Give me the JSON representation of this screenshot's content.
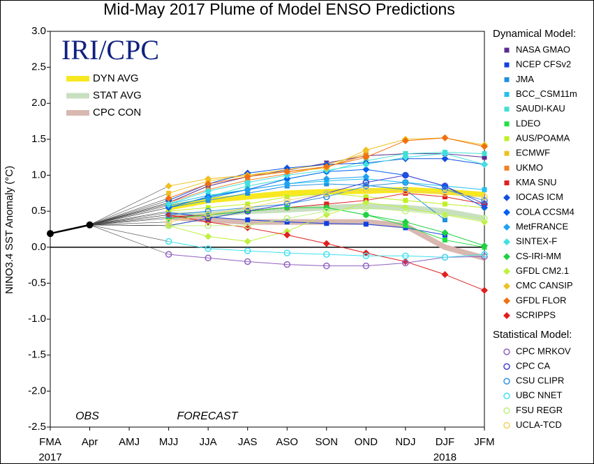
{
  "chart_data": {
    "type": "line",
    "title": "Mid-May 2017 Plume of Model ENSO Predictions",
    "logo": "IRI/CPC",
    "y_label": "NINO3.4 SST Anomaly (°C)",
    "categories": [
      "FMA",
      "Apr",
      "AMJ",
      "MJJ",
      "JJA",
      "JAS",
      "ASO",
      "SON",
      "OND",
      "NDJ",
      "DJF",
      "JFM"
    ],
    "year_labels": [
      "2017",
      "2018"
    ],
    "annotations": [
      "OBS",
      "FORECAST"
    ],
    "legend_groups": [
      "Dynamical Model:",
      "Statistical Model:"
    ],
    "ylim": [
      -2.5,
      3.0
    ],
    "yticks": [
      {
        "value": 3,
        "label": "3.0"
      },
      {
        "value": 2.5,
        "label": "2.5"
      },
      {
        "value": 2,
        "label": "2.0"
      },
      {
        "value": 1.5,
        "label": "1.5"
      },
      {
        "value": 1,
        "label": "1.0"
      },
      {
        "value": 0.5,
        "label": "0.5"
      },
      {
        "value": 0,
        "label": "0.0"
      },
      {
        "value": -0.5,
        "label": "-0.5"
      },
      {
        "value": -1,
        "label": "-1.0"
      },
      {
        "value": -1.5,
        "label": "-1.5"
      },
      {
        "value": -2,
        "label": "-2.0"
      },
      {
        "value": -2.5,
        "label": "-2.5"
      }
    ],
    "observed": {
      "color": "#000000",
      "values": [
        0.19,
        0.31,
        null,
        null,
        null,
        null,
        null,
        null,
        null,
        null,
        null,
        null
      ]
    },
    "averages": [
      {
        "name": "DYN AVG",
        "color": "#f8e820",
        "values": [
          null,
          null,
          null,
          0.55,
          0.65,
          0.7,
          0.75,
          0.77,
          0.78,
          0.8,
          0.77,
          0.73
        ]
      },
      {
        "name": "STAT AVG",
        "color": "#c8e0c0",
        "values": [
          null,
          null,
          null,
          0.45,
          0.45,
          0.5,
          0.52,
          0.55,
          0.57,
          0.55,
          0.5,
          0.4
        ]
      },
      {
        "name": "CPC CON",
        "color": "#d8b8b0",
        "values": [
          null,
          null,
          null,
          0.42,
          0.38,
          0.35,
          0.35,
          0.35,
          0.35,
          0.3,
          0.0,
          -0.15
        ]
      }
    ],
    "series": [
      {
        "name": "NASA GMAO",
        "group": "dynamical",
        "marker": "square",
        "color": "#5a2a90",
        "values": [
          null,
          null,
          null,
          0.62,
          0.85,
          0.98,
          1.07,
          1.17,
          1.27,
          1.3,
          1.3,
          1.25
        ]
      },
      {
        "name": "NCEP CFSv2",
        "group": "dynamical",
        "marker": "square",
        "color": "#1040e0",
        "values": [
          null,
          null,
          null,
          0.48,
          0.42,
          0.38,
          0.35,
          0.33,
          0.32,
          0.27,
          0.17,
          null
        ]
      },
      {
        "name": "JMA",
        "group": "dynamical",
        "marker": "square",
        "color": "#2090e0",
        "values": [
          null,
          null,
          null,
          0.55,
          0.65,
          0.75,
          0.85,
          0.88,
          0.86,
          0.8,
          0.38,
          null
        ]
      },
      {
        "name": "BCC_CSM11m",
        "group": "dynamical",
        "marker": "square",
        "color": "#20c0f0",
        "values": [
          null,
          null,
          null,
          0.6,
          0.72,
          0.8,
          0.88,
          0.92,
          0.95,
          0.9,
          0.85,
          0.8
        ]
      },
      {
        "name": "SAUDI-KAU",
        "group": "dynamical",
        "marker": "square",
        "color": "#40e0d0",
        "values": [
          null,
          null,
          null,
          0.55,
          0.7,
          0.85,
          0.95,
          1.05,
          1.2,
          1.3,
          1.32,
          1.3
        ]
      },
      {
        "name": "LDEO",
        "group": "dynamical",
        "marker": "square",
        "color": "#20e040",
        "values": [
          null,
          null,
          null,
          0.3,
          0.4,
          0.5,
          0.55,
          0.55,
          0.45,
          0.3,
          0.1,
          0.0
        ]
      },
      {
        "name": "AUS/POAMA",
        "group": "dynamical",
        "marker": "square",
        "color": "#c0f020",
        "values": [
          null,
          null,
          null,
          0.5,
          0.55,
          0.6,
          0.7,
          0.75,
          0.7,
          0.65,
          0.6,
          0.55
        ]
      },
      {
        "name": "ECMWF",
        "group": "dynamical",
        "marker": "square",
        "color": "#f0c020",
        "values": [
          null,
          null,
          null,
          0.75,
          0.92,
          1.0,
          1.08,
          1.15,
          1.3,
          null,
          null,
          null
        ]
      },
      {
        "name": "UKMO",
        "group": "dynamical",
        "marker": "square",
        "color": "#f08020",
        "values": [
          null,
          null,
          null,
          0.62,
          0.8,
          0.93,
          1.02,
          1.12,
          1.28,
          null,
          null,
          null
        ]
      },
      {
        "name": "KMA SNU",
        "group": "dynamical",
        "marker": "square",
        "color": "#e02020",
        "values": [
          null,
          null,
          null,
          0.42,
          0.45,
          0.5,
          0.55,
          0.6,
          0.65,
          0.75,
          0.7,
          0.6
        ]
      },
      {
        "name": "IOCAS ICM",
        "group": "dynamical",
        "marker": "diamond",
        "color": "#1050e0",
        "values": [
          null,
          null,
          null,
          0.65,
          0.88,
          1.03,
          1.1,
          1.15,
          1.17,
          1.23,
          1.23,
          1.15
        ]
      },
      {
        "name": "COLA CCSM4",
        "group": "dynamical",
        "marker": "diamond",
        "color": "#0060f0",
        "values": [
          null,
          null,
          null,
          0.55,
          0.7,
          0.8,
          0.95,
          1.05,
          1.08,
          1.0,
          0.85,
          0.55
        ]
      },
      {
        "name": "MetFRANCE",
        "group": "dynamical",
        "marker": "diamond",
        "color": "#20a0f0",
        "values": [
          null,
          null,
          null,
          0.58,
          0.68,
          0.8,
          0.88,
          0.95,
          0.98,
          null,
          null,
          null
        ]
      },
      {
        "name": "SINTEX-F",
        "group": "dynamical",
        "marker": "diamond",
        "color": "#40e0e0",
        "values": [
          null,
          null,
          null,
          0.6,
          0.78,
          0.9,
          1.0,
          1.07,
          1.15,
          1.25,
          1.3,
          1.15
        ]
      },
      {
        "name": "CS-IRI-MM",
        "group": "dynamical",
        "marker": "diamond",
        "color": "#20d040",
        "values": [
          null,
          null,
          null,
          0.4,
          0.45,
          0.5,
          0.55,
          0.55,
          0.45,
          0.35,
          0.2,
          0.02
        ]
      },
      {
        "name": "GFDL CM2.1",
        "group": "dynamical",
        "marker": "diamond",
        "color": "#c0f040",
        "values": [
          null,
          null,
          null,
          0.3,
          0.15,
          0.08,
          0.22,
          0.45,
          0.62,
          0.55,
          0.45,
          0.35
        ]
      },
      {
        "name": "CMC CANSIP",
        "group": "dynamical",
        "marker": "diamond",
        "color": "#f0c020",
        "values": [
          null,
          null,
          null,
          0.85,
          0.95,
          1.0,
          1.05,
          1.1,
          1.35,
          1.5,
          1.52,
          1.42
        ]
      },
      {
        "name": "GFDL FLOR",
        "group": "dynamical",
        "marker": "diamond",
        "color": "#f07010",
        "values": [
          null,
          null,
          null,
          0.68,
          0.88,
          0.98,
          1.05,
          1.12,
          1.25,
          1.48,
          1.52,
          1.4
        ]
      },
      {
        "name": "SCRIPPS",
        "group": "dynamical",
        "marker": "diamond",
        "color": "#e02020",
        "values": [
          null,
          null,
          null,
          0.45,
          0.35,
          0.27,
          0.17,
          0.05,
          -0.08,
          -0.2,
          -0.38,
          -0.6
        ]
      },
      {
        "name": "CPC MRKOV",
        "group": "statistical",
        "marker": "circle",
        "color": "#9060c0",
        "values": [
          null,
          null,
          null,
          -0.1,
          -0.15,
          -0.2,
          -0.24,
          -0.26,
          -0.26,
          -0.22,
          -0.14,
          -0.13
        ]
      },
      {
        "name": "CPC CA",
        "group": "statistical",
        "marker": "circle",
        "color": "#4040d0",
        "values": [
          null,
          null,
          null,
          0.3,
          0.4,
          0.5,
          0.6,
          0.75,
          0.9,
          1.0,
          0.85,
          0.6
        ]
      },
      {
        "name": "CSU CLIPR",
        "group": "statistical",
        "marker": "circle",
        "color": "#3090e0",
        "values": [
          null,
          null,
          null,
          0.45,
          0.5,
          0.55,
          0.6,
          0.7,
          0.85,
          0.9,
          0.8,
          0.65
        ]
      },
      {
        "name": "UBC NNET",
        "group": "statistical",
        "marker": "circle",
        "color": "#40e0f0",
        "values": [
          null,
          null,
          null,
          0.08,
          -0.02,
          -0.05,
          -0.08,
          -0.1,
          -0.12,
          -0.12,
          -0.14,
          -0.1
        ]
      },
      {
        "name": "FSU REGR",
        "group": "statistical",
        "marker": "circle",
        "color": "#c0f080",
        "values": [
          null,
          null,
          null,
          0.3,
          0.3,
          0.3,
          0.4,
          0.5,
          0.55,
          0.5,
          0.45,
          0.4
        ]
      },
      {
        "name": "UCLA-TCD",
        "group": "statistical",
        "marker": "circle",
        "color": "#f0d060",
        "values": [
          null,
          null,
          null,
          0.35,
          0.45,
          0.55,
          0.65,
          0.75,
          0.8,
          0.78,
          0.75,
          0.7
        ]
      }
    ]
  }
}
